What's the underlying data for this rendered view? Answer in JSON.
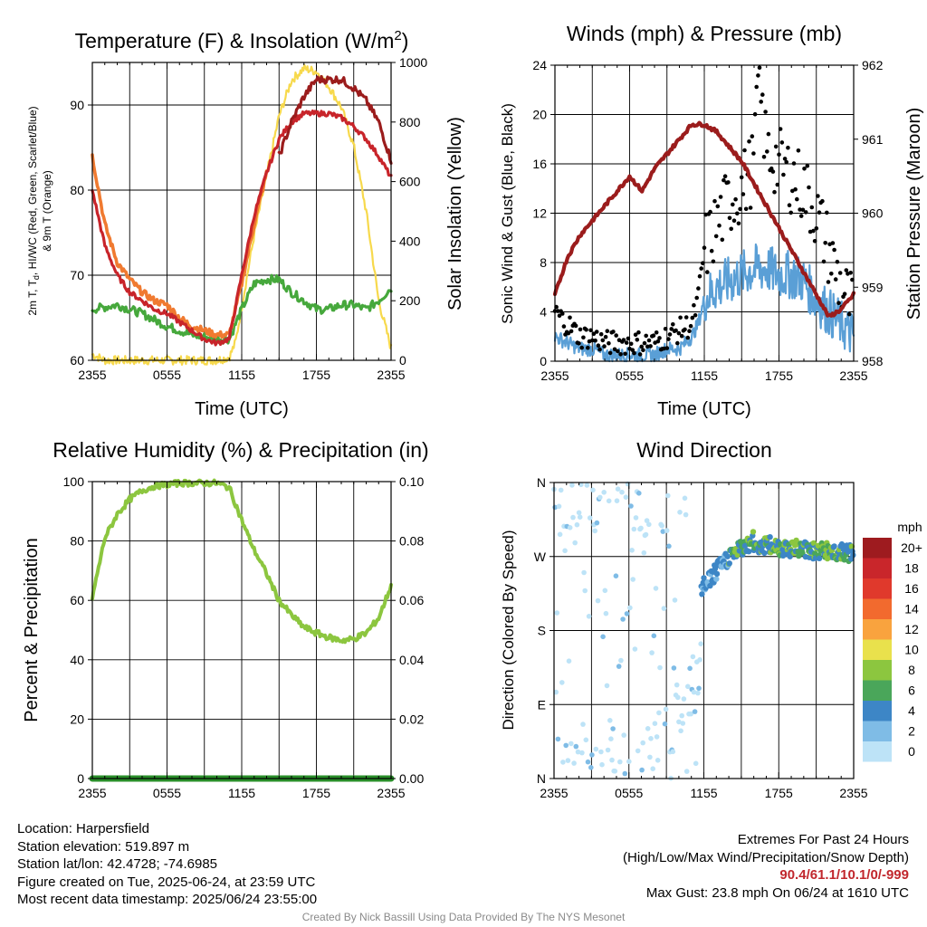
{
  "colors": {
    "temp": "#c8242a",
    "dew": "#46a83c",
    "heat_index": "#e8401c",
    "temp9m": "#f07a30",
    "solar": "#f7d94c",
    "wind": "#5a9fd6",
    "gust": "#000000",
    "pressure": "#9b1c1c",
    "rh": "#8cc63f",
    "precip": "#2a8f2a"
  },
  "time_ticks": [
    "2355",
    "0555",
    "1155",
    "1755",
    "2355"
  ],
  "panels": {
    "temperature": {
      "title_pre": "Temperature (F) & Insolation (W/m",
      "title_sup": "2",
      "title_post": ")",
      "ylabel_line1_pre": "2m T, T",
      "ylabel_line1_sub": "d",
      "ylabel_line1_post": ", HI/WC (Red, Green, Scarlet/Blue)",
      "ylabel_line2": "& 9m T (Orange)",
      "y2label": "Solar Insolation (Yellow)",
      "xlabel": "Time (UTC)",
      "yticks": [
        "60",
        "70",
        "80",
        "90"
      ],
      "y2ticks": [
        "0",
        "200",
        "400",
        "600",
        "800",
        "1000"
      ]
    },
    "winds": {
      "title": "Winds (mph) & Pressure (mb)",
      "ylabel": "Sonic Wind & Gust (Blue, Black)",
      "y2label": "Station Pressure (Maroon)",
      "xlabel": "Time (UTC)",
      "yticks": [
        "0",
        "4",
        "8",
        "12",
        "16",
        "20",
        "24"
      ],
      "y2ticks": [
        "958",
        "959",
        "960",
        "961",
        "962"
      ]
    },
    "humidity": {
      "title": "Relative Humidity (%) & Precipitation (in)",
      "ylabel": "Percent & Precipitation",
      "yticks": [
        "0",
        "20",
        "40",
        "60",
        "80",
        "100"
      ],
      "y2ticks": [
        "0.00",
        "0.02",
        "0.04",
        "0.06",
        "0.08",
        "0.10"
      ]
    },
    "direction": {
      "title": "Wind Direction",
      "ylabel": "Direction (Colored By Speed)",
      "yticks": [
        "N",
        "E",
        "S",
        "W",
        "N"
      ],
      "legend_title": "mph",
      "legend_labels": [
        "20+",
        "18",
        "16",
        "14",
        "12",
        "10",
        "8",
        "6",
        "4",
        "2",
        "0"
      ],
      "legend_colors": [
        "#9e1b1f",
        "#c9262b",
        "#e0392c",
        "#f26a2e",
        "#f9a33e",
        "#e9e14c",
        "#8cc63f",
        "#4aa65a",
        "#3d86c6",
        "#7fbce6",
        "#bde3f7"
      ]
    }
  },
  "chart_data": [
    {
      "type": "line",
      "title": "Temperature (F) & Insolation (W/m2)",
      "xlabel": "Time (UTC)",
      "ylabel": "2m T, Td, HI/WC (Red, Green, Scarlet/Blue) & 9m T (Orange)",
      "y2label": "Solar Insolation (Yellow)",
      "x_hours": [
        0,
        2,
        4,
        6,
        8,
        10,
        11,
        12,
        13,
        14,
        15,
        16,
        17,
        18,
        19,
        20,
        21,
        22,
        23,
        24
      ],
      "ylim": [
        60,
        95
      ],
      "y2lim": [
        0,
        1000
      ],
      "series": [
        {
          "name": "2m T",
          "axis": "left",
          "x": [
            0,
            1,
            2,
            3,
            4,
            5,
            6,
            7,
            8,
            9,
            10,
            11,
            12,
            13,
            14,
            15,
            16,
            17,
            18,
            19,
            20,
            21,
            22,
            23,
            24
          ],
          "values": [
            80,
            73.5,
            70,
            68,
            67,
            66,
            65.5,
            64.5,
            63.5,
            62.5,
            62,
            62.5,
            70,
            77,
            82,
            86,
            88,
            89,
            89,
            89,
            88.5,
            87.5,
            86,
            84,
            81.5
          ]
        },
        {
          "name": "Td",
          "axis": "left",
          "x": [
            0,
            2,
            4,
            6,
            8,
            10,
            11,
            12,
            13,
            14,
            15,
            16,
            17,
            18,
            19,
            20,
            21,
            22,
            23,
            24
          ],
          "values": [
            66,
            66.5,
            65.5,
            64,
            63,
            62.5,
            62.5,
            66,
            69,
            69.5,
            69.5,
            68,
            67,
            66,
            66,
            66.5,
            66.5,
            66,
            67,
            68.5
          ]
        },
        {
          "name": "9m T",
          "axis": "left",
          "x": [
            0,
            1,
            2,
            3,
            4,
            5,
            6,
            7,
            8,
            9,
            10,
            11,
            12,
            13,
            14
          ],
          "values": [
            84,
            76,
            71.5,
            69.5,
            68,
            67,
            66.5,
            65,
            64,
            63.5,
            63,
            63,
            69,
            76,
            82
          ]
        },
        {
          "name": "HI",
          "axis": "left",
          "x": [
            15,
            16,
            17,
            18,
            19,
            20,
            21,
            22,
            23,
            24
          ],
          "values": [
            84,
            88,
            91,
            93,
            93,
            93,
            92,
            90.5,
            88,
            83.5
          ]
        },
        {
          "name": "Solar",
          "axis": "right",
          "x": [
            0,
            1,
            2,
            3,
            4,
            5,
            6,
            7,
            8,
            9,
            10,
            11,
            11.5,
            12,
            13,
            14,
            15,
            16,
            17,
            18,
            19,
            20,
            21,
            22,
            23,
            24
          ],
          "values": [
            20,
            0,
            0,
            0,
            0,
            0,
            0,
            0,
            0,
            0,
            0,
            10,
            60,
            180,
            420,
            620,
            820,
            940,
            980,
            970,
            920,
            850,
            720,
            500,
            200,
            40
          ]
        }
      ]
    },
    {
      "type": "line",
      "title": "Winds (mph) & Pressure (mb)",
      "xlabel": "Time (UTC)",
      "ylabel": "Sonic Wind & Gust (Blue, Black)",
      "y2label": "Station Pressure (Maroon)",
      "ylim": [
        0,
        24
      ],
      "y2lim": [
        958,
        962
      ],
      "series": [
        {
          "name": "Wind",
          "axis": "left",
          "x": [
            0,
            1,
            2,
            3,
            4,
            5,
            6,
            7,
            8,
            9,
            10,
            11,
            11.5,
            12,
            13,
            14,
            15,
            16,
            17,
            18,
            19,
            20,
            21,
            22,
            23,
            24
          ],
          "values": [
            2,
            1.5,
            1,
            1,
            0.5,
            0.5,
            0.5,
            0.5,
            0.5,
            1,
            1,
            2,
            3,
            5,
            6,
            6.5,
            7,
            7.5,
            7.5,
            7,
            7,
            6.5,
            5,
            4,
            3,
            2
          ]
        },
        {
          "name": "Gust",
          "axis": "left",
          "x": [
            0,
            1,
            2,
            3,
            4,
            5,
            6,
            7,
            8,
            9,
            10,
            11,
            11.5,
            12,
            13,
            14,
            15,
            16,
            16.25,
            17,
            18,
            19,
            20,
            21,
            22,
            23,
            24
          ],
          "values": [
            4,
            3,
            2,
            2,
            1.5,
            1.5,
            1.5,
            1.5,
            1.5,
            2,
            2.5,
            3,
            5,
            9,
            11,
            13,
            14,
            16,
            23.8,
            17,
            16,
            15,
            14,
            12,
            9,
            6,
            4
          ]
        },
        {
          "name": "Pressure",
          "axis": "right",
          "x": [
            0,
            1,
            2,
            3,
            4,
            5,
            6,
            7,
            8,
            9,
            10,
            11,
            12,
            13,
            14,
            15,
            16,
            17,
            18,
            19,
            20,
            21,
            22,
            23,
            24
          ],
          "values": [
            958.9,
            959.4,
            959.7,
            959.9,
            960.1,
            960.3,
            960.5,
            960.3,
            960.6,
            960.8,
            961,
            961.2,
            961.2,
            961.1,
            960.9,
            960.7,
            960.4,
            960.1,
            959.8,
            959.5,
            959.2,
            958.9,
            958.6,
            958.7,
            958.9
          ]
        }
      ]
    },
    {
      "type": "line",
      "title": "Relative Humidity (%) & Precipitation (in)",
      "ylabel": "Percent & Precipitation",
      "ylim": [
        0,
        100
      ],
      "y2lim": [
        0,
        0.1
      ],
      "series": [
        {
          "name": "RH",
          "axis": "left",
          "x": [
            0,
            1,
            2,
            3,
            4,
            5,
            6,
            7,
            8,
            9,
            10,
            11,
            12,
            13,
            14,
            15,
            16,
            17,
            18,
            19,
            20,
            21,
            22,
            23,
            24
          ],
          "values": [
            61,
            81,
            89,
            94,
            97,
            98.5,
            99,
            99.5,
            99.5,
            99.5,
            99.5,
            98,
            87,
            77,
            69,
            60,
            55,
            51,
            49,
            47.5,
            46.5,
            47,
            49,
            54,
            65
          ]
        },
        {
          "name": "Precipitation",
          "axis": "right",
          "x": [
            0,
            24
          ],
          "values": [
            0,
            0
          ]
        }
      ]
    },
    {
      "type": "scatter",
      "title": "Wind Direction",
      "ylabel": "Direction (Colored By Speed)",
      "yticks": [
        "N",
        "E",
        "S",
        "W",
        "N"
      ],
      "note": "Dense scatter of direction vs time; overnight points near N through E/S at 0-2 mph, daytime points clustered near W to WNW at 4-10 mph."
    }
  ],
  "info": {
    "location": "Location: Harpersfield",
    "elevation": "Station elevation: 519.897 m",
    "latlon": "Station lat/lon: 42.4728; -74.6985",
    "created": "Figure created on Tue, 2025-06-24, at 23:59 UTC",
    "recent": "Most recent data timestamp: 2025/06/24 23:55:00",
    "extremes_title": "Extremes For Past 24 Hours",
    "extremes_sub": "(High/Low/Max Wind/Precipitation/Snow Depth)",
    "extremes_values": "90.4/61.1/10.1/0/-999",
    "max_gust": "Max Gust: 23.8 mph On 06/24 at 1610 UTC",
    "credit": "Created By Nick Bassill Using Data Provided By The NYS Mesonet"
  }
}
